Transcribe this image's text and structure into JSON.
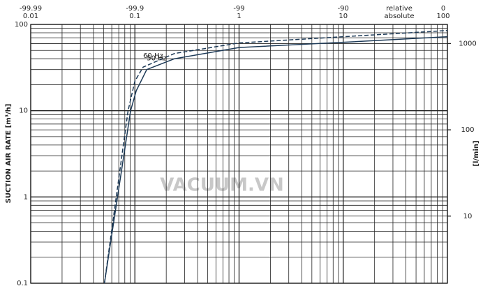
{
  "chart_data": {
    "type": "line",
    "y_label": "SUCTION AIR RATE [m³/h]",
    "y2_label": "[l/min]",
    "x_top_relative_title": "relative",
    "x_top_absolute_title": "absolute",
    "watermark": "VACUUM.VN",
    "log_x": true,
    "log_y": true,
    "grid": true,
    "xlim": [
      0.01,
      100
    ],
    "ylim": [
      0.1,
      100
    ],
    "xticks": [
      0.01,
      0.1,
      1,
      10,
      100
    ],
    "x_relative_ticks": [
      {
        "value": 0.01,
        "label": "-99.99"
      },
      {
        "value": 0.1,
        "label": "-99.9"
      },
      {
        "value": 1,
        "label": "-99"
      },
      {
        "value": 10,
        "label": "-90"
      },
      {
        "value": 100,
        "label": "0"
      }
    ],
    "xgrid": [
      0.02,
      0.03,
      0.04,
      0.05,
      0.06,
      0.07,
      0.08,
      0.09,
      0.2,
      0.3,
      0.4,
      0.5,
      0.6,
      0.7,
      0.8,
      0.9,
      2,
      3,
      4,
      5,
      6,
      7,
      8,
      9,
      20,
      30,
      40,
      50,
      60,
      70,
      80,
      90
    ],
    "yticks": [
      0.1,
      1,
      10,
      100
    ],
    "ygrid": [
      0.2,
      0.3,
      0.4,
      0.5,
      0.6,
      0.7,
      0.8,
      0.9,
      2,
      3,
      4,
      5,
      6,
      7,
      8,
      9,
      20,
      30,
      40,
      50,
      60,
      70,
      80,
      90
    ],
    "y2lim": [
      1.6667,
      1666.67
    ],
    "y2ticks": [
      10,
      100,
      1000
    ],
    "series": [
      {
        "name": "60 Hz",
        "color": "#1d3a57",
        "dashed": true,
        "x": [
          0.051,
          0.086,
          0.1,
          0.12,
          0.24,
          1,
          10,
          100
        ],
        "values": [
          0.1,
          10,
          22,
          32,
          46,
          61,
          72,
          85
        ]
      },
      {
        "name": "50 Hz",
        "color": "#1d3a57",
        "dashed": false,
        "x": [
          0.051,
          0.091,
          0.103,
          0.13,
          0.24,
          1,
          10,
          100
        ],
        "values": [
          0.1,
          10,
          17,
          30,
          40,
          54,
          62,
          72
        ]
      }
    ]
  }
}
